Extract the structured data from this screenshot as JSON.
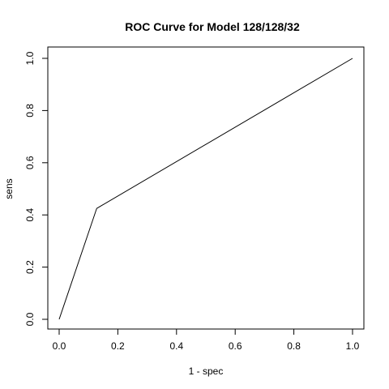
{
  "chart_data": {
    "type": "line",
    "title": "ROC Curve for Model 128/128/32",
    "xlabel": "1 - spec",
    "ylabel": "sens",
    "xlim": [
      0,
      1
    ],
    "ylim": [
      0,
      1
    ],
    "xticks": [
      0.0,
      0.2,
      0.4,
      0.6,
      0.8,
      1.0
    ],
    "xtick_labels": [
      "0.0",
      "0.2",
      "0.4",
      "0.6",
      "0.8",
      "1.0"
    ],
    "yticks": [
      0.0,
      0.2,
      0.4,
      0.6,
      0.8,
      1.0
    ],
    "ytick_labels": [
      "0.0",
      "0.2",
      "0.4",
      "0.6",
      "0.8",
      "1.0"
    ],
    "grid": false,
    "series": [
      {
        "x": [
          0.0,
          0.128,
          1.0
        ],
        "y": [
          0.0,
          0.425,
          1.0
        ]
      }
    ]
  }
}
